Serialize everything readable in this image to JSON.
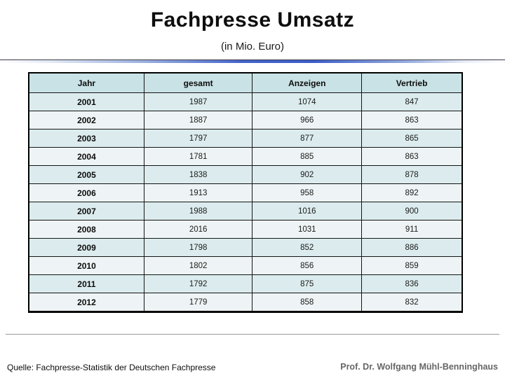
{
  "slide": {
    "title": "Fachpresse Umsatz",
    "subtitle": "(in Mio. Euro)",
    "source": "Quelle: Fachpresse-Statistik der Deutschen Fachpresse",
    "author": "Prof. Dr. Wolfgang Mühl-Benninghaus"
  },
  "chart_data": {
    "type": "table",
    "title": "Fachpresse Umsatz (in Mio. Euro)",
    "columns": [
      "Jahr",
      "gesamt",
      "Anzeigen",
      "Vertrieb"
    ],
    "rows": [
      [
        "2001",
        1987,
        1074,
        847
      ],
      [
        "2002",
        1887,
        966,
        863
      ],
      [
        "2003",
        1797,
        877,
        865
      ],
      [
        "2004",
        1781,
        885,
        863
      ],
      [
        "2005",
        1838,
        902,
        878
      ],
      [
        "2006",
        1913,
        958,
        892
      ],
      [
        "2007",
        1988,
        1016,
        900
      ],
      [
        "2008",
        2016,
        1031,
        911
      ],
      [
        "2009",
        1798,
        852,
        886
      ],
      [
        "2010",
        1802,
        856,
        859
      ],
      [
        "2011",
        1792,
        875,
        836
      ],
      [
        "2012",
        1779,
        858,
        832
      ]
    ]
  },
  "colors": {
    "header_row_bg": "#c9e2e5",
    "row_odd_bg": "#dcecee",
    "row_even_bg": "#eef4f5",
    "divider_blue": "#3d5ec9",
    "author_gray": "#666666"
  }
}
